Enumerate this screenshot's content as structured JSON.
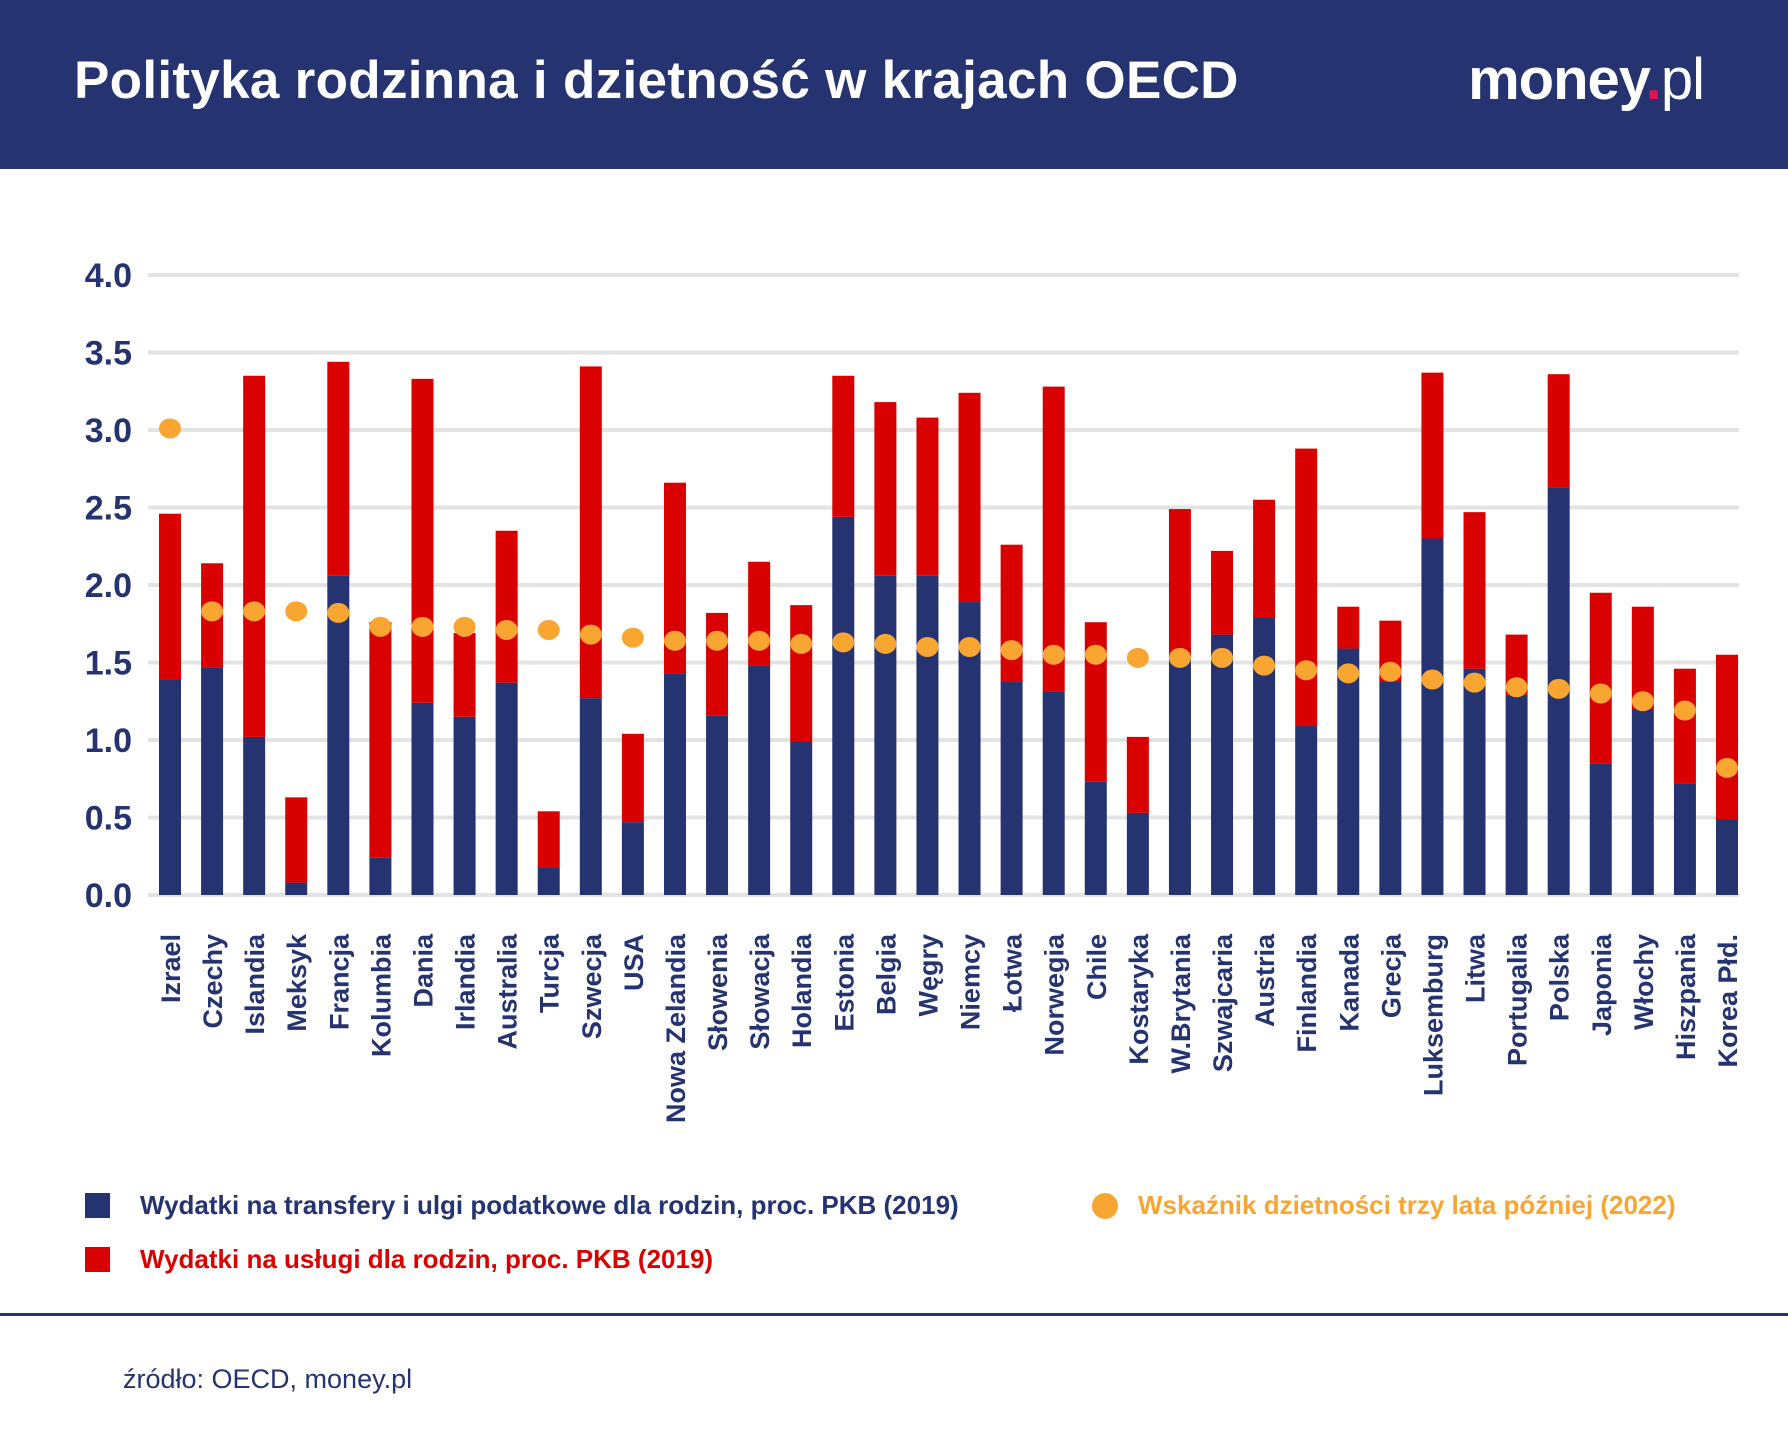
{
  "header": {
    "title": "Polityka rodzinna i dzietność w krajach OECD",
    "logo_text": "money.pl"
  },
  "colors": {
    "navy": "#253370",
    "red": "#d90000",
    "orange": "#f8a532",
    "grid": "#e3e3e3"
  },
  "chart_data": {
    "type": "bar",
    "stacked": true,
    "ylim": [
      0,
      4
    ],
    "yticks": [
      "0.0",
      "0.5",
      "1.0",
      "1.5",
      "2.0",
      "2.5",
      "3.0",
      "3.5",
      "4.0"
    ],
    "grid": true,
    "categories": [
      "Izrael",
      "Czechy",
      "Islandia",
      "Meksyk",
      "Francja",
      "Kolumbia",
      "Dania",
      "Irlandia",
      "Australia",
      "Turcja",
      "Szwecja",
      "USA",
      "Nowa Zelandia",
      "Słowenia",
      "Słowacja",
      "Holandia",
      "Estonia",
      "Belgia",
      "Węgry",
      "Niemcy",
      "Łotwa",
      "Norwegia",
      "Chile",
      "Kostaryka",
      "W.Brytania",
      "Szwajcaria",
      "Austria",
      "Finlandia",
      "Kanada",
      "Grecja",
      "Luksemburg",
      "Litwa",
      "Portugalia",
      "Polska",
      "Japonia",
      "Włochy",
      "Hiszpania",
      "Korea Płd."
    ],
    "series": [
      {
        "name": "Wydatki na transfery i ulgi podatkowe dla rodzin, proc. PKB (2019)",
        "kind": "bar",
        "color": "#253370",
        "values": [
          1.39,
          1.47,
          1.02,
          0.08,
          2.06,
          0.24,
          1.24,
          1.15,
          1.37,
          0.18,
          1.27,
          0.47,
          1.43,
          1.16,
          1.48,
          0.99,
          2.44,
          2.06,
          2.06,
          1.89,
          1.38,
          1.31,
          0.73,
          0.53,
          1.53,
          1.68,
          1.79,
          1.09,
          1.59,
          1.38,
          2.3,
          1.46,
          1.29,
          2.63,
          0.85,
          1.2,
          0.72,
          0.49
        ]
      },
      {
        "name": "Wydatki na usługi dla rodzin, proc. PKB (2019)",
        "kind": "bar",
        "color": "#d90000",
        "values": [
          1.07,
          0.67,
          2.33,
          0.55,
          1.38,
          1.52,
          2.09,
          0.54,
          0.98,
          0.36,
          2.14,
          0.57,
          1.23,
          0.66,
          0.67,
          0.88,
          0.91,
          1.12,
          1.02,
          1.35,
          0.88,
          1.97,
          1.03,
          0.49,
          0.96,
          0.54,
          0.76,
          1.79,
          0.27,
          0.39,
          1.07,
          1.01,
          0.39,
          0.73,
          1.1,
          0.66,
          0.74,
          1.06
        ]
      },
      {
        "name": "Wskaźnik dzietności trzy lata później (2022)",
        "kind": "scatter",
        "color": "#f8a532",
        "values": [
          3.01,
          1.83,
          1.83,
          1.83,
          1.82,
          1.73,
          1.73,
          1.73,
          1.71,
          1.71,
          1.68,
          1.66,
          1.64,
          1.64,
          1.64,
          1.62,
          1.63,
          1.62,
          1.6,
          1.6,
          1.58,
          1.55,
          1.55,
          1.53,
          1.53,
          1.53,
          1.48,
          1.45,
          1.43,
          1.44,
          1.39,
          1.37,
          1.34,
          1.33,
          1.3,
          1.25,
          1.19,
          0.82
        ]
      }
    ],
    "legend": "bottom"
  },
  "legend": {
    "transfers": "Wydatki na transfery i ulgi podatkowe dla rodzin, proc. PKB (2019)",
    "services": "Wydatki na usługi dla rodzin, proc. PKB (2019)",
    "fertility": "Wskaźnik dzietności trzy lata później (2022)"
  },
  "footer": {
    "source": "źródło: OECD, money.pl"
  }
}
